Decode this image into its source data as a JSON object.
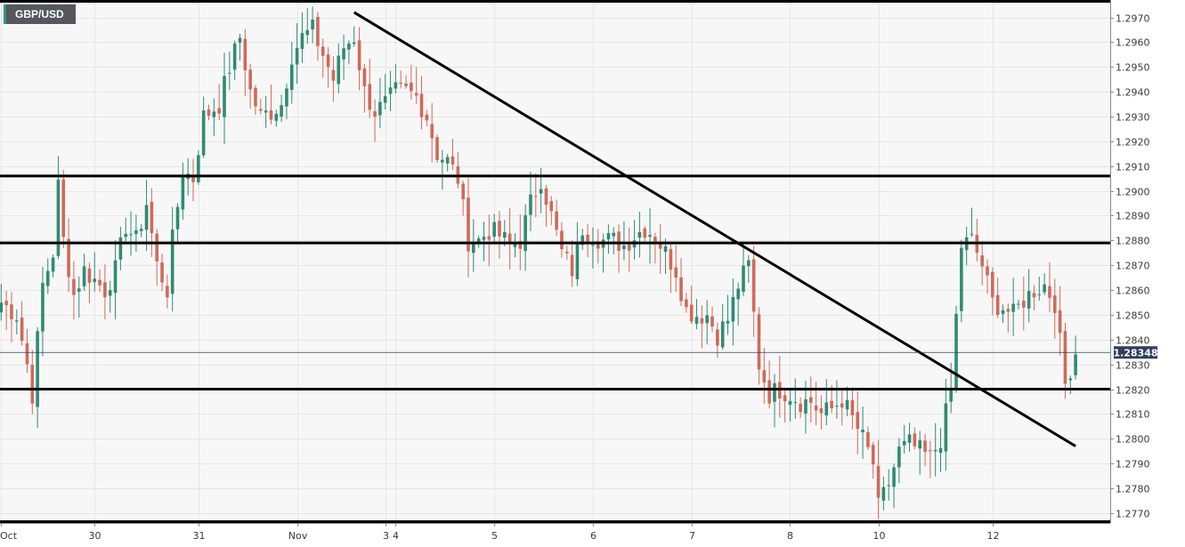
{
  "symbol": "GBP/USD",
  "chart_data": {
    "type": "candlestick",
    "ylim": [
      1.2766,
      1.2977
    ],
    "y_ticks": [
      "1.2970",
      "1.2960",
      "1.2950",
      "1.2940",
      "1.2930",
      "1.2920",
      "1.2910",
      "1.2900",
      "1.2890",
      "1.2880",
      "1.2870",
      "1.2860",
      "1.2850",
      "1.2840",
      "1.2830",
      "1.2820",
      "1.2810",
      "1.2800",
      "1.2790",
      "1.2780",
      "1.2770"
    ],
    "x_labels": [
      {
        "label": "Oct",
        "bar": 0
      },
      {
        "label": "30",
        "bar": 18
      },
      {
        "label": "31",
        "bar": 38
      },
      {
        "label": "Nov",
        "bar": 57
      },
      {
        "label": "3",
        "bar": 74
      },
      {
        "label": "4",
        "bar": 76
      },
      {
        "label": "5",
        "bar": 95
      },
      {
        "label": "6",
        "bar": 114
      },
      {
        "label": "7",
        "bar": 133
      },
      {
        "label": "8",
        "bar": 152
      },
      {
        "label": "10",
        "bar": 169
      },
      {
        "label": "12",
        "bar": 191
      }
    ],
    "current_price": "1.28348",
    "current_value": 1.28348,
    "horizontal_levels": [
      1.2906,
      1.2879,
      1.282
    ],
    "trendline": {
      "from": {
        "bar": 68,
        "price": 1.2972
      },
      "to": {
        "bar": 207,
        "price": 1.2797
      }
    },
    "colors": {
      "up": "#2e8b74",
      "down": "#d0695a",
      "grid": "#e6e6e6",
      "price_badge": "#2f3f60",
      "lines": "#000000"
    },
    "anchors": [
      [
        0,
        1.2855
      ],
      [
        3,
        1.285
      ],
      [
        5,
        1.283
      ],
      [
        6,
        1.2818
      ],
      [
        8,
        1.2862
      ],
      [
        10,
        1.2875
      ],
      [
        11,
        1.2902
      ],
      [
        12,
        1.288
      ],
      [
        14,
        1.2858
      ],
      [
        16,
        1.2868
      ],
      [
        20,
        1.286
      ],
      [
        22,
        1.2868
      ],
      [
        24,
        1.2886
      ],
      [
        26,
        1.288
      ],
      [
        28,
        1.2895
      ],
      [
        30,
        1.287
      ],
      [
        32,
        1.286
      ],
      [
        33,
        1.288
      ],
      [
        35,
        1.2908
      ],
      [
        37,
        1.2905
      ],
      [
        39,
        1.293
      ],
      [
        42,
        1.2935
      ],
      [
        44,
        1.295
      ],
      [
        46,
        1.2962
      ],
      [
        48,
        1.294
      ],
      [
        50,
        1.293
      ],
      [
        52,
        1.2932
      ],
      [
        54,
        1.2935
      ],
      [
        56,
        1.2955
      ],
      [
        58,
        1.2962
      ],
      [
        60,
        1.2965
      ],
      [
        62,
        1.2955
      ],
      [
        64,
        1.2945
      ],
      [
        66,
        1.2958
      ],
      [
        68,
        1.2962
      ],
      [
        70,
        1.294
      ],
      [
        72,
        1.2932
      ],
      [
        74,
        1.2935
      ],
      [
        76,
        1.294
      ],
      [
        78,
        1.294
      ],
      [
        80,
        1.2938
      ],
      [
        82,
        1.293
      ],
      [
        84,
        1.2915
      ],
      [
        86,
        1.2912
      ],
      [
        88,
        1.2905
      ],
      [
        90,
        1.288
      ],
      [
        92,
        1.288
      ],
      [
        94,
        1.2884
      ],
      [
        96,
        1.2882
      ],
      [
        98,
        1.2878
      ],
      [
        100,
        1.288
      ],
      [
        102,
        1.2895
      ],
      [
        104,
        1.2905
      ],
      [
        106,
        1.289
      ],
      [
        108,
        1.2875
      ],
      [
        110,
        1.2868
      ],
      [
        112,
        1.2885
      ],
      [
        114,
        1.2882
      ],
      [
        116,
        1.288
      ],
      [
        118,
        1.288
      ],
      [
        120,
        1.2878
      ],
      [
        122,
        1.2882
      ],
      [
        124,
        1.2885
      ],
      [
        126,
        1.2882
      ],
      [
        128,
        1.2875
      ],
      [
        130,
        1.2868
      ],
      [
        132,
        1.2852
      ],
      [
        134,
        1.285
      ],
      [
        136,
        1.285
      ],
      [
        138,
        1.2842
      ],
      [
        140,
        1.2848
      ],
      [
        142,
        1.2862
      ],
      [
        144,
        1.287
      ],
      [
        146,
        1.283
      ],
      [
        148,
        1.2818
      ],
      [
        150,
        1.282
      ],
      [
        152,
        1.2818
      ],
      [
        154,
        1.2815
      ],
      [
        156,
        1.2815
      ],
      [
        158,
        1.281
      ],
      [
        160,
        1.2812
      ],
      [
        162,
        1.2816
      ],
      [
        164,
        1.2808
      ],
      [
        166,
        1.28
      ],
      [
        168,
        1.279
      ],
      [
        169,
        1.2772
      ],
      [
        171,
        1.2782
      ],
      [
        173,
        1.2795
      ],
      [
        175,
        1.2798
      ],
      [
        177,
        1.2795
      ],
      [
        179,
        1.2792
      ],
      [
        181,
        1.28
      ],
      [
        183,
        1.282
      ],
      [
        185,
        1.2878
      ],
      [
        187,
        1.288
      ],
      [
        189,
        1.287
      ],
      [
        191,
        1.2855
      ],
      [
        193,
        1.2853
      ],
      [
        195,
        1.285
      ],
      [
        197,
        1.2856
      ],
      [
        199,
        1.286
      ],
      [
        201,
        1.2862
      ],
      [
        203,
        1.2855
      ],
      [
        205,
        1.2822
      ],
      [
        207,
        1.2835
      ]
    ]
  }
}
